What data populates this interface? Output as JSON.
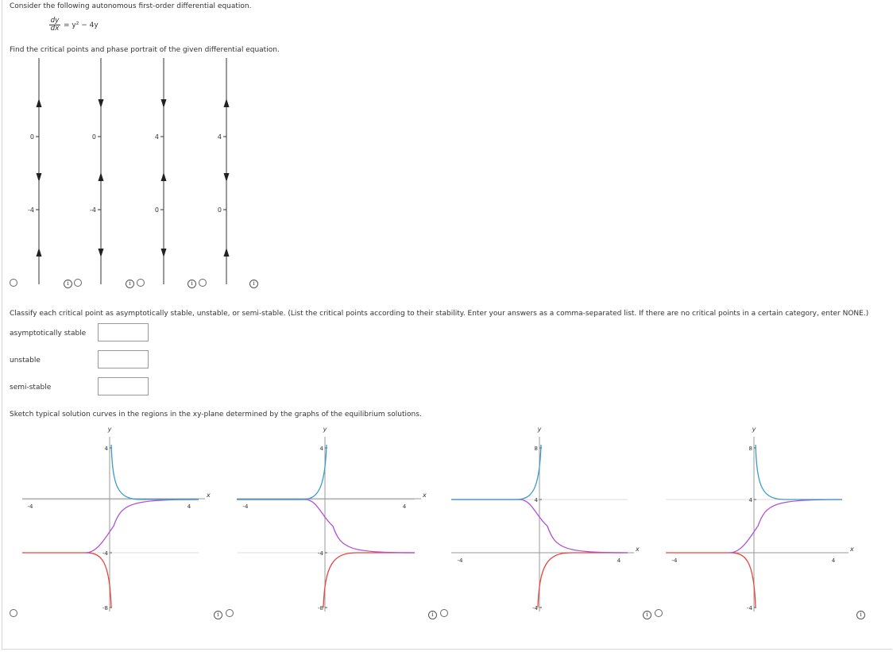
{
  "intro": "Consider the following autonomous first-order differential equation.",
  "equation": {
    "numerator": "dy",
    "denominator": "dx",
    "rhs": "= y² − 4y"
  },
  "phase_prompt": "Find the critical points and phase portrait of the given differential equation.",
  "phase_options": [
    {
      "top_label": "0",
      "bottom_label": "-4",
      "arrows": [
        "up",
        "down",
        "up"
      ]
    },
    {
      "top_label": "0",
      "bottom_label": "-4",
      "arrows": [
        "down",
        "up",
        "down"
      ]
    },
    {
      "top_label": "4",
      "bottom_label": "0",
      "arrows": [
        "down",
        "up",
        "down"
      ]
    },
    {
      "top_label": "4",
      "bottom_label": "0",
      "arrows": [
        "up",
        "down",
        "up"
      ]
    }
  ],
  "classify_prompt": "Classify each critical point as asymptotically stable, unstable, or semi-stable. (List the critical points according to their stability. Enter your answers as a comma-separated list. If there are no critical points in a certain category, enter NONE.)",
  "fields": [
    {
      "label": "asymptotically stable",
      "value": ""
    },
    {
      "label": "unstable",
      "value": ""
    },
    {
      "label": "semi-stable",
      "value": ""
    }
  ],
  "sketch_prompt": "Sketch typical solution curves in the regions in the xy-plane determined by the graphs of the equilibrium solutions.",
  "chart_data": [
    {
      "type": "line",
      "title": "",
      "xlabel": "x",
      "ylabel": "y",
      "xlim": [
        -5,
        5
      ],
      "ylim": [
        -8,
        4
      ],
      "x_ticks": [
        "-4",
        "4"
      ],
      "y_ticks": [
        "4",
        "-4",
        "-8"
      ],
      "equilibria": [
        0,
        -4
      ],
      "series": [
        {
          "name": "above upper equilibrium",
          "color": "#3a9ac9",
          "description": "descends from near y=4 to y=0"
        },
        {
          "name": "between equilibria",
          "color": "#b04fd6",
          "description": "rises from y=-4 to y=0"
        },
        {
          "name": "below lower equilibrium",
          "color": "#e8433a",
          "description": "from y=-4 falls toward y=-8"
        }
      ]
    },
    {
      "type": "line",
      "title": "",
      "xlabel": "x",
      "ylabel": "y",
      "xlim": [
        -5,
        5
      ],
      "ylim": [
        -8,
        4
      ],
      "x_ticks": [
        "-4",
        "4"
      ],
      "y_ticks": [
        "4",
        "-4",
        "-8"
      ],
      "equilibria": [
        0,
        -4
      ],
      "series": [
        {
          "name": "above upper equilibrium",
          "color": "#3a9ac9",
          "description": "rises from y=0 toward y=4"
        },
        {
          "name": "between equilibria",
          "color": "#b04fd6",
          "description": "falls from y=0 to y=-4"
        },
        {
          "name": "below lower equilibrium",
          "color": "#e8433a",
          "description": "rises from near y=-8 to y=-4"
        }
      ]
    },
    {
      "type": "line",
      "title": "",
      "xlabel": "x",
      "ylabel": "y",
      "xlim": [
        -5,
        5
      ],
      "ylim": [
        -4,
        8
      ],
      "x_ticks": [
        "-4",
        "4"
      ],
      "y_ticks": [
        "8",
        "4",
        "-4"
      ],
      "equilibria": [
        4,
        0
      ],
      "series": [
        {
          "name": "above upper equilibrium",
          "color": "#3a9ac9",
          "description": "rises from y=4 toward y=8"
        },
        {
          "name": "between equilibria",
          "color": "#b04fd6",
          "description": "falls from y=4 to y=0"
        },
        {
          "name": "below lower equilibrium",
          "color": "#e8433a",
          "description": "rises from near y=-4 to y=0"
        }
      ]
    },
    {
      "type": "line",
      "title": "",
      "xlabel": "x",
      "ylabel": "y",
      "xlim": [
        -5,
        5
      ],
      "ylim": [
        -4,
        8
      ],
      "x_ticks": [
        "-4",
        "4"
      ],
      "y_ticks": [
        "8",
        "4",
        "-4"
      ],
      "equilibria": [
        4,
        0
      ],
      "series": [
        {
          "name": "above upper equilibrium",
          "color": "#3a9ac9",
          "description": "descends from near y=8 to y=4"
        },
        {
          "name": "between equilibria",
          "color": "#b04fd6",
          "description": "rises from y=0 to y=4"
        },
        {
          "name": "below lower equilibrium",
          "color": "#e8433a",
          "description": "from y=0 falls toward y=-4"
        }
      ]
    }
  ],
  "axis_color": "#999999",
  "arrow_color": "#222222",
  "info_symbol": "i"
}
